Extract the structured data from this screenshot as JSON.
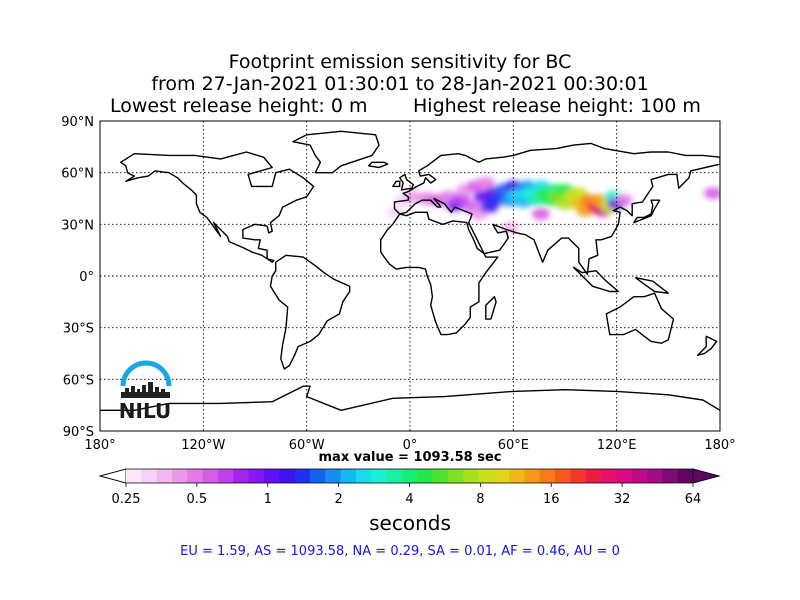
{
  "title": {
    "line1": "Footprint emission sensitivity for BC",
    "line2": "from 27-Jan-2021 01:30:01 to 28-Jan-2021 00:30:01",
    "left": "Lowest release height: 0 m",
    "right": "Highest release height: 100 m"
  },
  "logo": {
    "text": "NILU",
    "color": "#1aa6e2"
  },
  "stats": "EU = 1.59,  AS = 1093.58,  NA = 0.29,  SA = 0.01,  AF = 0.46,  AU = 0",
  "chart_data": {
    "type": "heatmap",
    "projection": "equirectangular",
    "lon_range": [
      -180,
      180
    ],
    "lat_range": [
      -90,
      90
    ],
    "x_ticks": [
      {
        "value": -180,
        "label": "180°"
      },
      {
        "value": -120,
        "label": "120°W"
      },
      {
        "value": -60,
        "label": "60°W"
      },
      {
        "value": 0,
        "label": "0°"
      },
      {
        "value": 60,
        "label": "60°E"
      },
      {
        "value": 120,
        "label": "120°E"
      },
      {
        "value": 180,
        "label": "180°"
      }
    ],
    "y_ticks": [
      {
        "value": 90,
        "label": "90°N"
      },
      {
        "value": 60,
        "label": "60°N"
      },
      {
        "value": 30,
        "label": "30°N"
      },
      {
        "value": 0,
        "label": "0°"
      },
      {
        "value": -30,
        "label": "30°S"
      },
      {
        "value": -60,
        "label": "60°S"
      },
      {
        "value": -90,
        "label": "90°S"
      }
    ],
    "grid": true,
    "max_label": "max value = 1093.58 sec",
    "colorbar": {
      "label": "seconds",
      "scale": "log",
      "range": [
        0.25,
        64
      ],
      "ticks": [
        0.25,
        0.5,
        1,
        2,
        4,
        8,
        16,
        32,
        64
      ],
      "tick_labels": [
        "0.25",
        "0.5",
        "1",
        "2",
        "4",
        "8",
        "16",
        "32",
        "64"
      ],
      "colors": [
        "#fde6fb",
        "#f9d0f6",
        "#f3b6f0",
        "#ec98ea",
        "#e37ae6",
        "#d55ce6",
        "#c040ea",
        "#a326ee",
        "#8418f2",
        "#6212f2",
        "#4014f0",
        "#2030f0",
        "#1660f0",
        "#148ef0",
        "#16b8f0",
        "#18dcee",
        "#18f0d4",
        "#18f0a4",
        "#18ee74",
        "#22e84a",
        "#50e22a",
        "#7ee022",
        "#a6e01e",
        "#c8e01c",
        "#e2d41a",
        "#f0b818",
        "#f49a18",
        "#f47a1a",
        "#f45a1c",
        "#f23a2a",
        "#ee1a48",
        "#e8106c",
        "#d80c86",
        "#c00c8a",
        "#a00c88",
        "#800a78",
        "#600860"
      ]
    },
    "plume": [
      {
        "lon": -4,
        "lat": 44,
        "value": 0.3
      },
      {
        "lon": 2,
        "lat": 46,
        "value": 0.4
      },
      {
        "lon": 10,
        "lat": 45,
        "value": 0.5
      },
      {
        "lon": 16,
        "lat": 44,
        "value": 0.6
      },
      {
        "lon": 22,
        "lat": 46,
        "value": 0.5
      },
      {
        "lon": 26,
        "lat": 41,
        "value": 0.9
      },
      {
        "lon": 30,
        "lat": 45,
        "value": 0.7
      },
      {
        "lon": 32,
        "lat": 50,
        "value": 0.4
      },
      {
        "lon": 36,
        "lat": 40,
        "value": 0.6
      },
      {
        "lon": 38,
        "lat": 52,
        "value": 0.6
      },
      {
        "lon": 40,
        "lat": 36,
        "value": 0.4
      },
      {
        "lon": 42,
        "lat": 46,
        "value": 1.0
      },
      {
        "lon": 44,
        "lat": 54,
        "value": 0.5
      },
      {
        "lon": 46,
        "lat": 40,
        "value": 1.2
      },
      {
        "lon": 48,
        "lat": 48,
        "value": 1.0
      },
      {
        "lon": 50,
        "lat": 44,
        "value": 1.5
      },
      {
        "lon": 54,
        "lat": 50,
        "value": 1.6
      },
      {
        "lon": 58,
        "lat": 44,
        "value": 2.0
      },
      {
        "lon": 60,
        "lat": 52,
        "value": 1.2
      },
      {
        "lon": 62,
        "lat": 47,
        "value": 2.5
      },
      {
        "lon": 66,
        "lat": 43,
        "value": 2.2
      },
      {
        "lon": 68,
        "lat": 52,
        "value": 1.8
      },
      {
        "lon": 70,
        "lat": 48,
        "value": 3.0
      },
      {
        "lon": 74,
        "lat": 44,
        "value": 3.5
      },
      {
        "lon": 76,
        "lat": 52,
        "value": 2.5
      },
      {
        "lon": 78,
        "lat": 48,
        "value": 4.5
      },
      {
        "lon": 82,
        "lat": 44,
        "value": 5.0
      },
      {
        "lon": 84,
        "lat": 50,
        "value": 4.0
      },
      {
        "lon": 86,
        "lat": 46,
        "value": 6.0
      },
      {
        "lon": 90,
        "lat": 42,
        "value": 7.0
      },
      {
        "lon": 90,
        "lat": 50,
        "value": 5.0
      },
      {
        "lon": 94,
        "lat": 46,
        "value": 9.0
      },
      {
        "lon": 98,
        "lat": 42,
        "value": 12.0
      },
      {
        "lon": 98,
        "lat": 48,
        "value": 8.0
      },
      {
        "lon": 102,
        "lat": 38,
        "value": 14.0
      },
      {
        "lon": 104,
        "lat": 44,
        "value": 16.0
      },
      {
        "lon": 108,
        "lat": 40,
        "value": 24.0
      },
      {
        "lon": 110,
        "lat": 44,
        "value": 14.0
      },
      {
        "lon": 112,
        "lat": 38,
        "value": 40.0
      },
      {
        "lon": 114,
        "lat": 42,
        "value": 12.0
      },
      {
        "lon": 116,
        "lat": 40,
        "value": 9.0
      },
      {
        "lon": 118,
        "lat": 46,
        "value": 3.0
      },
      {
        "lon": 120,
        "lat": 42,
        "value": 1.2
      },
      {
        "lon": 124,
        "lat": 44,
        "value": 0.5
      },
      {
        "lon": 58,
        "lat": 28,
        "value": 0.35
      },
      {
        "lon": 76,
        "lat": 36,
        "value": 0.6
      },
      {
        "lon": -8,
        "lat": 37,
        "value": 0.3
      },
      {
        "lon": 176,
        "lat": 48,
        "value": 0.6
      }
    ]
  }
}
